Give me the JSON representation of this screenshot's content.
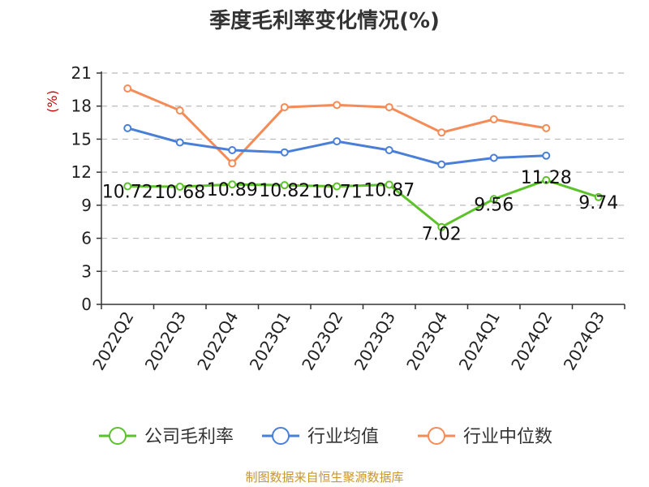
{
  "chart_data": {
    "type": "line",
    "title": "季度毛利率变化情况(%)",
    "ylabel": "(%)",
    "xlabel": "",
    "ylim": [
      0,
      21
    ],
    "yticks": [
      0,
      3,
      6,
      9,
      12,
      15,
      18,
      21
    ],
    "grid": true,
    "legend_position": "bottom",
    "categories": [
      "2022Q2",
      "2022Q3",
      "2022Q4",
      "2023Q1",
      "2023Q2",
      "2023Q3",
      "2023Q4",
      "2024Q1",
      "2024Q2",
      "2024Q3"
    ],
    "series": [
      {
        "name": "公司毛利率",
        "color": "#5cc22a",
        "values": [
          10.72,
          10.68,
          10.89,
          10.82,
          10.71,
          10.87,
          7.02,
          9.56,
          11.28,
          9.74
        ],
        "labels": [
          "10.72",
          "10.68",
          "10.89",
          "10.82",
          "10.71",
          "10.87",
          "7.02",
          "9.56",
          "11.28",
          "9.74"
        ]
      },
      {
        "name": "行业均值",
        "color": "#4a7fd8",
        "values": [
          16.0,
          14.7,
          14.0,
          13.8,
          14.8,
          14.0,
          12.7,
          13.3,
          13.5,
          null
        ]
      },
      {
        "name": "行业中位数",
        "color": "#f58b56",
        "values": [
          19.6,
          17.6,
          12.8,
          17.9,
          18.1,
          17.9,
          15.6,
          16.8,
          16.0,
          null
        ]
      }
    ],
    "source": "制图数据来自恒生聚源数据库",
    "colors": {
      "unit": "#cc0000",
      "source": "#c8962a",
      "grid": "#bbbbbb",
      "axis": "#333333"
    }
  }
}
